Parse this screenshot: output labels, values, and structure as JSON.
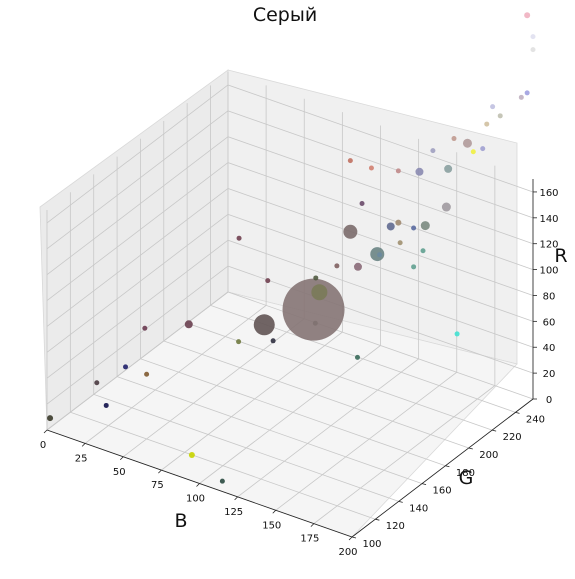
{
  "chart_data": {
    "type": "scatter",
    "title": "Серый",
    "xlabel": "B",
    "ylabel": "G",
    "zlabel": "R",
    "x_ticks": [
      0,
      25,
      50,
      75,
      100,
      125,
      150,
      175,
      200
    ],
    "y_ticks": [
      100,
      120,
      140,
      160,
      180,
      200,
      220,
      240
    ],
    "z_ticks": [
      0,
      20,
      40,
      60,
      80,
      100,
      120,
      140,
      160
    ],
    "xlim": [
      0,
      200
    ],
    "ylim": [
      100,
      255
    ],
    "zlim": [
      0,
      170
    ],
    "grid": true,
    "points": [
      {
        "b": 2,
        "g": 100,
        "r": 10,
        "size": 4,
        "color": "#3a3a2a"
      },
      {
        "b": 35,
        "g": 105,
        "r": 30,
        "size": 3,
        "color": "#10104a"
      },
      {
        "b": 25,
        "g": 110,
        "r": 40,
        "size": 3,
        "color": "#4a3a40"
      },
      {
        "b": 40,
        "g": 115,
        "r": 55,
        "size": 3,
        "color": "#20206a"
      },
      {
        "b": 50,
        "g": 120,
        "r": 50,
        "size": 3,
        "color": "#805a30"
      },
      {
        "b": 45,
        "g": 125,
        "r": 80,
        "size": 3,
        "color": "#6a3a50"
      },
      {
        "b": 95,
        "g": 100,
        "r": 20,
        "size": 4,
        "color": "#c8d400"
      },
      {
        "b": 115,
        "g": 100,
        "r": 8,
        "size": 3,
        "color": "#2a4a40"
      },
      {
        "b": 70,
        "g": 130,
        "r": 90,
        "size": 6,
        "color": "#6a4050"
      },
      {
        "b": 95,
        "g": 140,
        "r": 80,
        "size": 3,
        "color": "#707a40"
      },
      {
        "b": 110,
        "g": 150,
        "r": 80,
        "size": 3,
        "color": "#303040"
      },
      {
        "b": 108,
        "g": 145,
        "r": 95,
        "size": 19,
        "color": "#625454"
      },
      {
        "b": 80,
        "g": 160,
        "r": 140,
        "size": 3,
        "color": "#704050"
      },
      {
        "b": 95,
        "g": 165,
        "r": 110,
        "size": 3,
        "color": "#704050"
      },
      {
        "b": 115,
        "g": 180,
        "r": 110,
        "size": 3,
        "color": "#505a40"
      },
      {
        "b": 125,
        "g": 170,
        "r": 110,
        "size": 14,
        "color": "#7a7a58"
      },
      {
        "b": 130,
        "g": 160,
        "r": 95,
        "size": 3,
        "color": "#4a5a50"
      },
      {
        "b": 125,
        "g": 185,
        "r": 120,
        "size": 3,
        "color": "#806060"
      },
      {
        "b": 150,
        "g": 170,
        "r": 70,
        "size": 3,
        "color": "#3a6a5a"
      },
      {
        "b": 125,
        "g": 165,
        "r": 100,
        "size": 60,
        "color": "#857474"
      },
      {
        "b": 135,
        "g": 190,
        "r": 120,
        "size": 6,
        "color": "#8a6a78"
      },
      {
        "b": 140,
        "g": 200,
        "r": 125,
        "size": 12,
        "color": "#6a8484"
      },
      {
        "b": 130,
        "g": 190,
        "r": 145,
        "size": 12,
        "color": "#7a6a6a"
      },
      {
        "b": 155,
        "g": 200,
        "r": 140,
        "size": 3,
        "color": "#a09070"
      },
      {
        "b": 160,
        "g": 205,
        "r": 120,
        "size": 3,
        "color": "#60a090"
      },
      {
        "b": 130,
        "g": 215,
        "r": 110,
        "size": 3,
        "color": "#6a8aa0"
      },
      {
        "b": 145,
        "g": 205,
        "r": 145,
        "size": 6,
        "color": "#606a90"
      },
      {
        "b": 130,
        "g": 200,
        "r": 160,
        "size": 3,
        "color": "#6a4a6a"
      },
      {
        "b": 150,
        "g": 205,
        "r": 150,
        "size": 4,
        "color": "#a08a70"
      },
      {
        "b": 160,
        "g": 205,
        "r": 150,
        "size": 3,
        "color": "#5a6aa0"
      },
      {
        "b": 160,
        "g": 215,
        "r": 145,
        "size": 7,
        "color": "#7a8a80"
      },
      {
        "b": 170,
        "g": 220,
        "r": 160,
        "size": 7,
        "color": "#a09aa0"
      },
      {
        "b": 170,
        "g": 200,
        "r": 140,
        "size": 3,
        "color": "#60a090"
      },
      {
        "b": 130,
        "g": 190,
        "r": 200,
        "size": 3,
        "color": "#c07060"
      },
      {
        "b": 140,
        "g": 195,
        "r": 195,
        "size": 3,
        "color": "#d08070"
      },
      {
        "b": 150,
        "g": 205,
        "r": 190,
        "size": 3,
        "color": "#c08a8a"
      },
      {
        "b": 160,
        "g": 210,
        "r": 190,
        "size": 6,
        "color": "#8a8ab0"
      },
      {
        "b": 165,
        "g": 215,
        "r": 205,
        "size": 3,
        "color": "#a0a0c0"
      },
      {
        "b": 175,
        "g": 220,
        "r": 215,
        "size": 3,
        "color": "#c09a90"
      },
      {
        "b": 180,
        "g": 225,
        "r": 210,
        "size": 7,
        "color": "#b09a9a"
      },
      {
        "b": 175,
        "g": 215,
        "r": 195,
        "size": 6,
        "color": "#8aa0a0"
      },
      {
        "b": 180,
        "g": 230,
        "r": 200,
        "size": 3,
        "color": "#f0f040"
      },
      {
        "b": 190,
        "g": 225,
        "r": 210,
        "size": 3,
        "color": "#a0a0d0"
      },
      {
        "b": 185,
        "g": 235,
        "r": 220,
        "size": 3,
        "color": "#d0c0a0"
      },
      {
        "b": 190,
        "g": 240,
        "r": 225,
        "size": 3,
        "color": "#c0c0b0"
      },
      {
        "b": 185,
        "g": 240,
        "r": 230,
        "size": 3,
        "color": "#c0c0e0"
      },
      {
        "b": 200,
        "g": 250,
        "r": 240,
        "size": 3,
        "color": "#a0a0e0"
      },
      {
        "b": 200,
        "g": 245,
        "r": 240,
        "size": 3,
        "color": "#c0b0c0"
      },
      {
        "b": 200,
        "g": 255,
        "r": 270,
        "size": 3,
        "color": "#e0e0e0"
      },
      {
        "b": 200,
        "g": 250,
        "r": 300,
        "size": 4,
        "color": "#f0b0c0"
      },
      {
        "b": 200,
        "g": 255,
        "r": 280,
        "size": 3,
        "color": "#e0e0f0"
      },
      {
        "b": 200,
        "g": 190,
        "r": 95,
        "size": 3,
        "color": "#40e0d0"
      }
    ]
  }
}
